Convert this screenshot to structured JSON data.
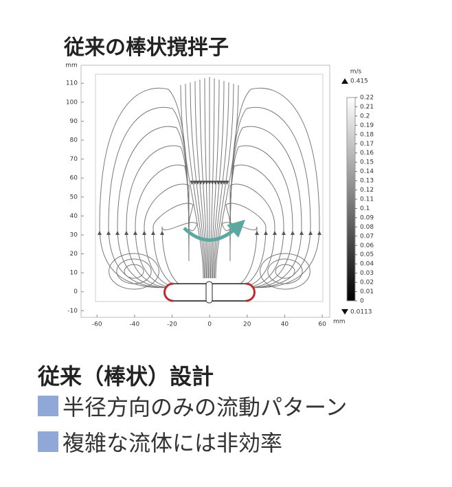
{
  "chart_data": {
    "type": "streamline",
    "title": "従来の棒状撹拌子",
    "xlabel": "mm",
    "ylabel": "mm",
    "xlim": [
      -68.5,
      64
    ],
    "ylim": [
      -13.5,
      119.5
    ],
    "xticks": [
      -60,
      -40,
      -20,
      0,
      20,
      40,
      60
    ],
    "yticks": [
      -10,
      0,
      10,
      20,
      30,
      40,
      50,
      60,
      70,
      80,
      90,
      100,
      110
    ],
    "colorbar": {
      "title": "m/s",
      "clim": [
        0,
        0.22
      ],
      "max": 0.415,
      "min": 0.0113,
      "ticks": [
        0.22,
        0.21,
        0.2,
        0.19,
        0.18,
        0.17,
        0.16,
        0.15,
        0.14,
        0.13,
        0.12,
        0.11,
        0.1,
        0.09,
        0.08,
        0.07,
        0.06,
        0.05,
        0.04,
        0.03,
        0.02,
        0.01,
        0
      ]
    }
  },
  "caption": {
    "heading": "従来（棒状）設計",
    "bullets": [
      "半径方向のみの流動パターン",
      "複雑な流体には非効率"
    ]
  }
}
